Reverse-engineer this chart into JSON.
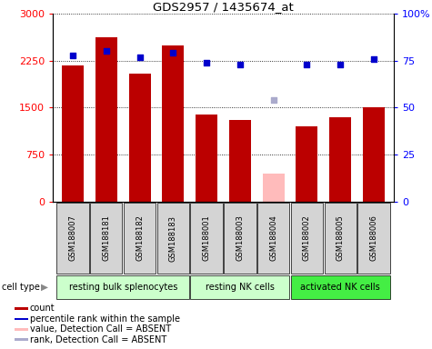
{
  "title": "GDS2957 / 1435674_at",
  "samples": [
    "GSM188007",
    "GSM188181",
    "GSM188182",
    "GSM188183",
    "GSM188001",
    "GSM188003",
    "GSM188004",
    "GSM188002",
    "GSM188005",
    "GSM188006"
  ],
  "counts": [
    2175,
    2620,
    2050,
    2490,
    1390,
    1300,
    null,
    1210,
    1350,
    1500
  ],
  "counts_absent": [
    null,
    null,
    null,
    null,
    null,
    null,
    450,
    null,
    null,
    null
  ],
  "percentile_ranks": [
    78,
    80,
    77,
    79,
    74,
    73,
    null,
    73,
    73,
    76
  ],
  "ranks_absent_val": [
    null,
    null,
    null,
    null,
    null,
    null,
    1620,
    null,
    null,
    null
  ],
  "cell_groups": [
    {
      "label": "resting bulk splenocytes",
      "start": 0,
      "end": 4,
      "color": "#ccffcc"
    },
    {
      "label": "resting NK cells",
      "start": 4,
      "end": 7,
      "color": "#ccffcc"
    },
    {
      "label": "activated NK cells",
      "start": 7,
      "end": 10,
      "color": "#44ee44"
    }
  ],
  "ylim_left": [
    0,
    3000
  ],
  "ylim_right": [
    0,
    100
  ],
  "yticks_left": [
    0,
    750,
    1500,
    2250,
    3000
  ],
  "yticks_right": [
    0,
    25,
    50,
    75,
    100
  ],
  "ytick_labels_left": [
    "0",
    "750",
    "1500",
    "2250",
    "3000"
  ],
  "ytick_labels_right": [
    "0",
    "25",
    "50",
    "75",
    "100%"
  ],
  "bar_color_red": "#bb0000",
  "bar_color_pink": "#ffbbbb",
  "dot_color_blue": "#0000cc",
  "dot_color_lightblue": "#aaaacc",
  "legend_items": [
    {
      "color": "#bb0000",
      "label": "count"
    },
    {
      "color": "#0000cc",
      "label": "percentile rank within the sample"
    },
    {
      "color": "#ffbbbb",
      "label": "value, Detection Call = ABSENT"
    },
    {
      "color": "#aaaacc",
      "label": "rank, Detection Call = ABSENT"
    }
  ]
}
